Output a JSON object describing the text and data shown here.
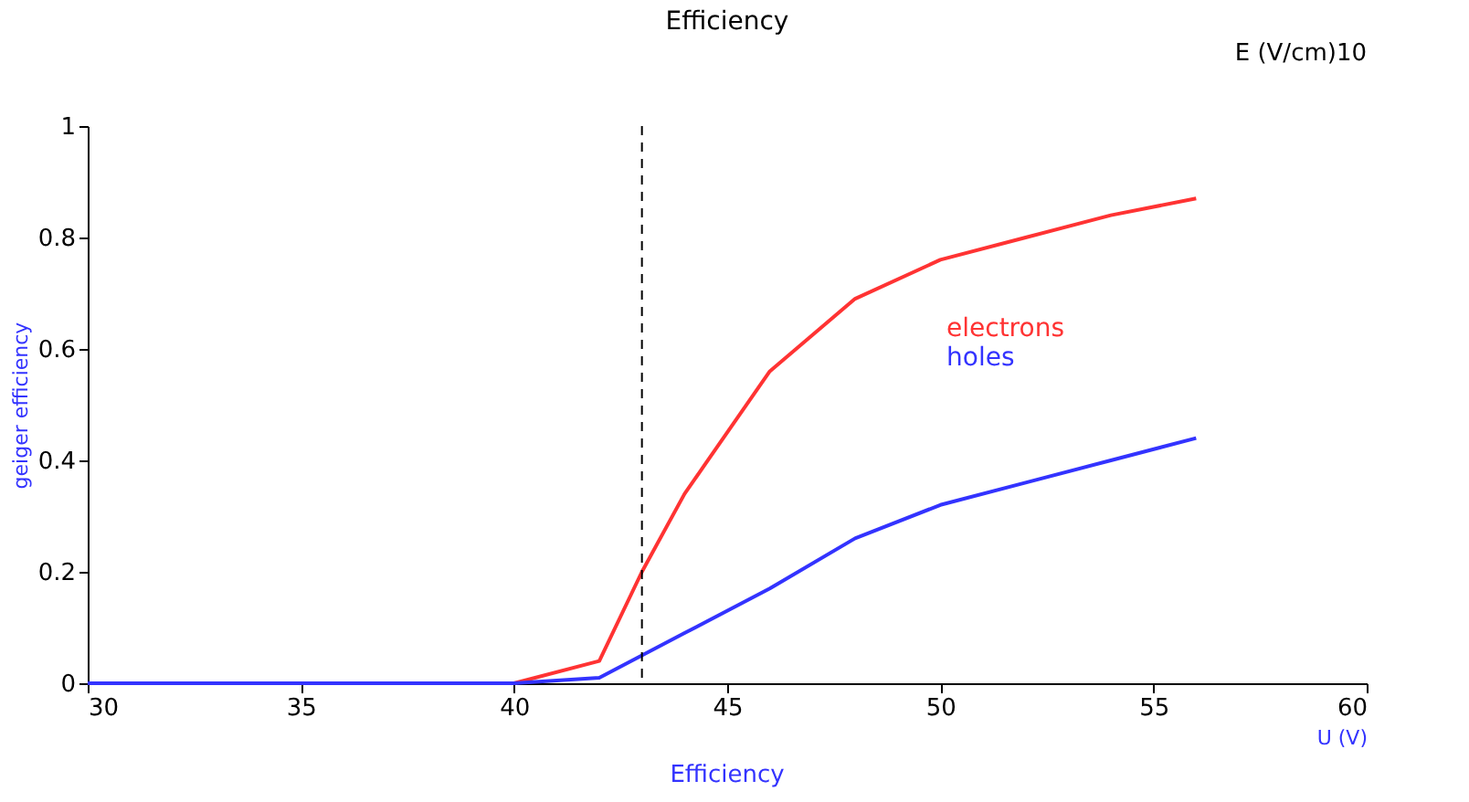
{
  "chart_data": {
    "type": "line",
    "title": "Efficiency",
    "xlabel": "U (V)",
    "ylabel": "geiger efficiency",
    "annotations": [
      "Efficiency",
      "E (V/cm)10"
    ],
    "series": [
      {
        "name": "electrons",
        "color": "#ff3333",
        "x": [
          30,
          40,
          42,
          43,
          44,
          46,
          48,
          50,
          52,
          54,
          56
        ],
        "values": [
          0,
          0,
          0.04,
          0.2,
          0.34,
          0.56,
          0.69,
          0.76,
          0.8,
          0.84,
          0.87
        ]
      },
      {
        "name": "holes",
        "color": "#3333ff",
        "x": [
          30,
          40,
          42,
          43,
          44,
          46,
          48,
          50,
          52,
          54,
          56
        ],
        "values": [
          0,
          0,
          0.01,
          0.05,
          0.09,
          0.17,
          0.26,
          0.32,
          0.36,
          0.4,
          0.44
        ]
      }
    ],
    "xlim": [
      30,
      60
    ],
    "xticks": [
      30,
      35,
      40,
      45,
      50,
      55,
      60
    ],
    "ylim": [
      0,
      1
    ],
    "yticks": [
      0,
      0.2,
      0.4,
      0.6,
      0.8,
      1
    ],
    "ref_lines": [
      {
        "axis": "x",
        "value": 43,
        "line_style": "dashed",
        "color": "#000000"
      }
    ],
    "grid": false,
    "line_style": "solid",
    "marker": "none"
  }
}
